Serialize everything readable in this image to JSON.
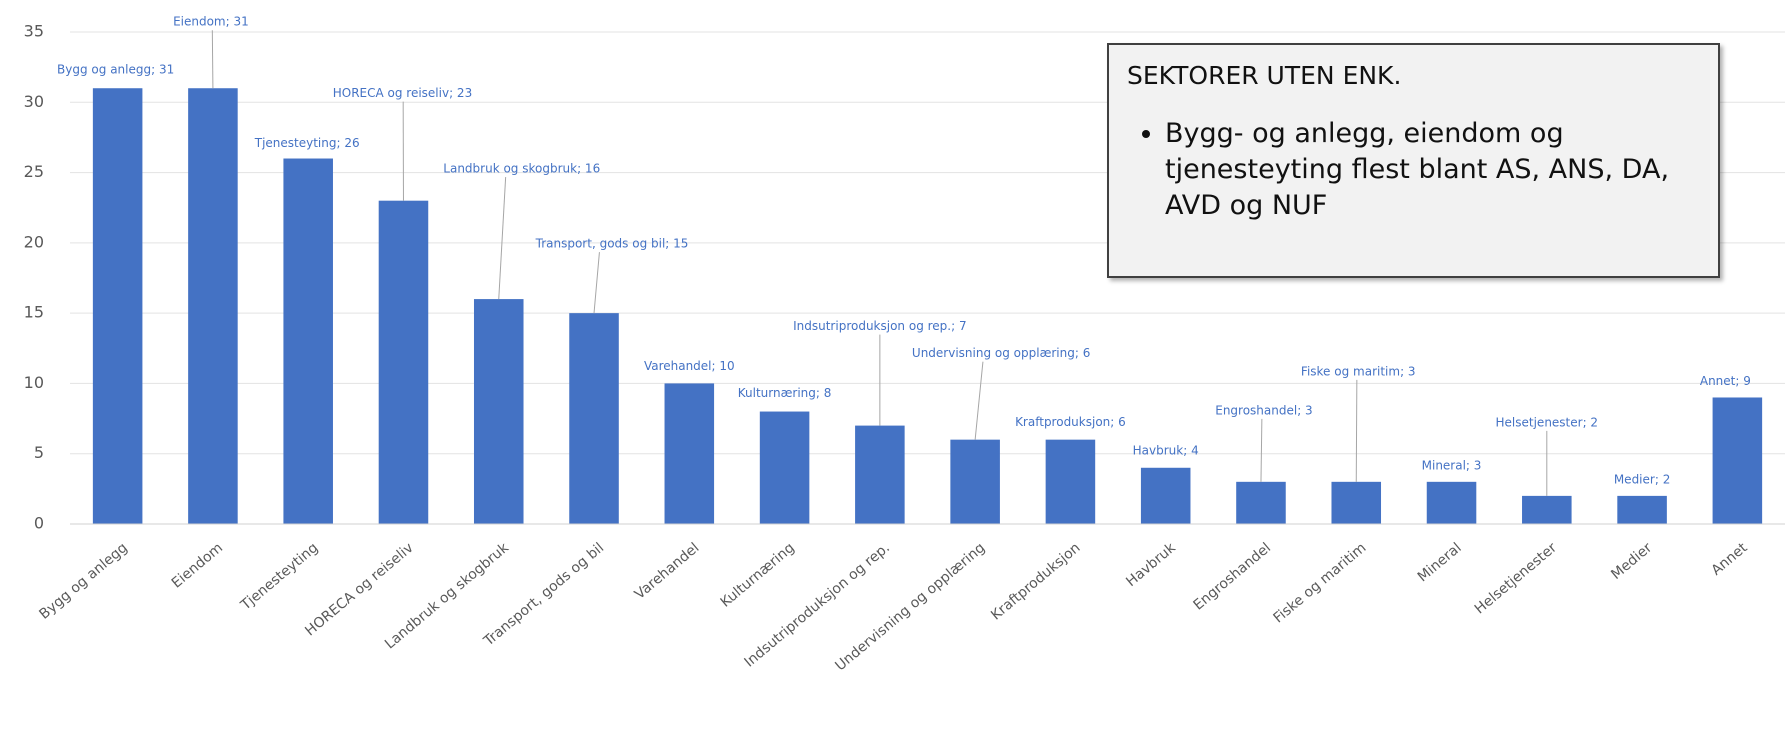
{
  "chart_data": {
    "type": "bar",
    "categories": [
      "Bygg og anlegg",
      "Eiendom",
      "Tjenesteyting",
      "HORECA og reiseliv",
      "Landbruk og skogbruk",
      "Transport, gods og bil",
      "Varehandel",
      "Kulturnæring",
      "Indsutriproduksjon og rep.",
      "Undervisning og opplæring",
      "Kraftproduksjon",
      "Havbruk",
      "Engroshandel",
      "Fiske og maritim",
      "Mineral",
      "Helsetjenester",
      "Medier",
      "Annet"
    ],
    "values": [
      31,
      31,
      26,
      23,
      16,
      15,
      10,
      8,
      7,
      6,
      6,
      4,
      3,
      3,
      3,
      2,
      2,
      9
    ],
    "value_labels": [
      "Bygg og anlegg; 31",
      "Eiendom;  31",
      "Tjenesteyting;  26",
      "HORECA og reiseliv; 23",
      "Landbruk og skogbruk; 16",
      "Transport, gods og bil; 15",
      "Varehandel; 10",
      "Kulturnæring; 8",
      "Indsutriproduksjon og rep.; 7",
      "Undervisning og opplæring; 6",
      "Kraftproduksjon; 6",
      "Havbruk; 4",
      "Engroshandel; 3",
      "Fiske og maritim; 3",
      "Mineral; 3",
      "Helsetjenester;  2",
      "Medier; 2",
      "Annet; 9"
    ],
    "color": "#4472c4",
    "ylim": [
      0,
      35
    ],
    "yticks": [
      0,
      5,
      10,
      15,
      20,
      25,
      30,
      35
    ],
    "grid": true,
    "annotation": {
      "heading": "SEKTORER UTEN ENK.",
      "bullet": "Bygg- og anlegg, eiendom og tjenesteyting flest blant AS, ANS, DA, AVD og NUF"
    }
  }
}
